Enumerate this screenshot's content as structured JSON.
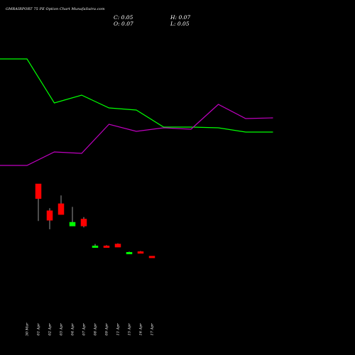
{
  "header": {
    "title": "GMRAIRPORT 75  PE Option  Chart MunafaSutra.com",
    "c_label": "C: 0.05",
    "o_label": "O: 0.07",
    "h_label": "H: 0.07",
    "l_label": "L: 0.05"
  },
  "colors": {
    "background": "#000000",
    "up": "#00ff00",
    "down": "#ff0000",
    "line_green": "#00ff00",
    "line_magenta": "#c000c0",
    "wick": "#ffffff"
  },
  "chart_data": {
    "type": "candlestick",
    "categories": [
      "30 Mar",
      "01 Apr",
      "02 Apr",
      "03 Apr",
      "04 Apr",
      "07 Apr",
      "08 Apr",
      "09 Apr",
      "11 Apr",
      "15 Apr",
      "16 Apr",
      "17 Apr"
    ],
    "visible_tick_labels": [
      "30 Mar",
      "01 Apr",
      "02 Apr",
      "03 Apr",
      "04 Apr",
      "07 Apr",
      "08 Apr",
      "09 Apr",
      "11 Apr",
      "15 Apr",
      "16 Apr",
      "17 Apr"
    ],
    "ohlc": [
      null,
      {
        "open": 1.2,
        "high": 1.2,
        "low": 0.62,
        "close": 0.97,
        "dir": "down"
      },
      {
        "open": 0.78,
        "high": 0.82,
        "low": 0.49,
        "close": 0.63,
        "dir": "down"
      },
      {
        "open": 0.89,
        "high": 1.02,
        "low": 0.72,
        "close": 0.72,
        "dir": "down"
      },
      {
        "open": 0.54,
        "high": 0.84,
        "low": 0.54,
        "close": 0.6,
        "dir": "up"
      },
      {
        "open": 0.65,
        "high": 0.68,
        "low": 0.52,
        "close": 0.54,
        "dir": "down"
      },
      {
        "open": 0.22,
        "high": 0.26,
        "low": 0.2,
        "close": 0.23,
        "dir": "up"
      },
      {
        "open": 0.23,
        "high": 0.24,
        "low": 0.21,
        "close": 0.22,
        "dir": "down"
      },
      {
        "open": 0.26,
        "high": 0.27,
        "low": 0.21,
        "close": 0.21,
        "dir": "down"
      },
      {
        "open": 0.12,
        "high": 0.14,
        "low": 0.11,
        "close": 0.13,
        "dir": "up"
      },
      {
        "open": 0.14,
        "high": 0.15,
        "low": 0.12,
        "close": 0.12,
        "dir": "down"
      },
      {
        "open": 0.07,
        "high": 0.07,
        "low": 0.05,
        "close": 0.05,
        "dir": "down"
      }
    ],
    "lines": [
      {
        "color": "green",
        "values": [
          83,
          83,
          145,
          134,
          152,
          155,
          179,
          179,
          180,
          186,
          186
        ]
      },
      {
        "color": "magenta",
        "values": [
          233,
          233,
          214,
          216,
          175,
          185,
          180,
          182,
          147,
          167,
          166
        ]
      }
    ],
    "lines_note_units": "price-scale units not printed on chart; values are relative plot levels",
    "title": "",
    "xlabel": "",
    "ylabel": ""
  }
}
